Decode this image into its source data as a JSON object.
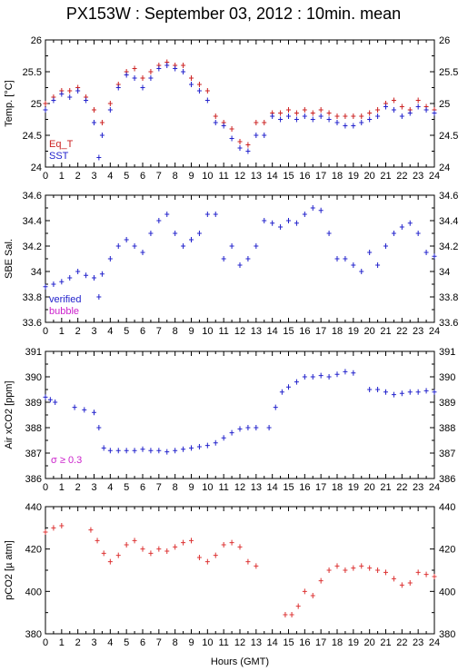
{
  "title": "PX153W : September 03, 2012 : 10min. mean",
  "chart_data": [
    {
      "type": "scatter",
      "ylabel": "Temp. [°C]",
      "ylim": [
        24,
        26
      ],
      "yticks": [
        "24",
        "24.5",
        "25",
        "25.5",
        "26"
      ],
      "xlim": [
        0,
        24
      ],
      "xticks": [
        "0",
        "1",
        "2",
        "3",
        "4",
        "5",
        "6",
        "7",
        "8",
        "9",
        "10",
        "11",
        "12",
        "13",
        "14",
        "15",
        "16",
        "17",
        "18",
        "19",
        "20",
        "21",
        "22",
        "23",
        "24"
      ],
      "legend": [
        {
          "name": "Eq_T",
          "color": "#cc2222"
        },
        {
          "name": "SST",
          "color": "#2222cc"
        }
      ],
      "series": [
        {
          "name": "Eq_T",
          "color": "#cc2222",
          "x": [
            0.0,
            0.5,
            1.0,
            1.5,
            2.0,
            2.5,
            3.0,
            3.5,
            4.0,
            4.5,
            5.0,
            5.5,
            6.0,
            6.5,
            7.0,
            7.5,
            8.0,
            8.5,
            9.0,
            9.5,
            10.0,
            10.5,
            11.0,
            11.5,
            12.0,
            12.5,
            13.0,
            13.5,
            14.0,
            14.5,
            15.0,
            15.5,
            16.0,
            16.5,
            17.0,
            17.5,
            18.0,
            18.5,
            19.0,
            19.5,
            20.0,
            20.5,
            21.0,
            21.5,
            22.0,
            22.5,
            23.0,
            23.5,
            24.0
          ],
          "y": [
            25.0,
            25.1,
            25.2,
            25.2,
            25.25,
            25.1,
            24.9,
            24.7,
            25.0,
            25.3,
            25.5,
            25.55,
            25.4,
            25.5,
            25.6,
            25.65,
            25.6,
            25.6,
            25.4,
            25.3,
            25.2,
            24.8,
            24.7,
            24.6,
            24.4,
            24.35,
            24.7,
            24.7,
            24.85,
            24.85,
            24.9,
            24.85,
            24.9,
            24.85,
            24.9,
            24.85,
            24.8,
            24.8,
            24.8,
            24.8,
            24.85,
            24.9,
            25.0,
            25.05,
            24.95,
            24.9,
            25.05,
            24.95,
            24.9
          ]
        },
        {
          "name": "SST",
          "color": "#2222cc",
          "x": [
            0.0,
            0.5,
            1.0,
            1.5,
            2.0,
            2.5,
            3.0,
            3.3,
            3.5,
            4.0,
            4.5,
            5.0,
            5.5,
            6.0,
            6.5,
            7.0,
            7.5,
            8.0,
            8.5,
            9.0,
            9.5,
            10.0,
            10.5,
            11.0,
            11.5,
            12.0,
            12.5,
            13.0,
            13.5,
            14.0,
            14.5,
            15.0,
            15.5,
            16.0,
            16.5,
            17.0,
            17.5,
            18.0,
            18.5,
            19.0,
            19.5,
            20.0,
            20.5,
            21.0,
            21.5,
            22.0,
            22.5,
            23.0,
            23.5,
            24.0
          ],
          "y": [
            24.9,
            25.05,
            25.15,
            25.1,
            25.2,
            25.05,
            24.7,
            24.15,
            24.5,
            24.9,
            25.25,
            25.45,
            25.4,
            25.25,
            25.4,
            25.55,
            25.6,
            25.55,
            25.5,
            25.3,
            25.2,
            25.05,
            24.7,
            24.65,
            24.45,
            24.3,
            24.25,
            24.5,
            24.5,
            24.8,
            24.75,
            24.8,
            24.75,
            24.8,
            24.75,
            24.8,
            24.75,
            24.7,
            24.65,
            24.65,
            24.7,
            24.75,
            24.8,
            24.95,
            24.9,
            24.8,
            24.85,
            24.95,
            24.9,
            24.85
          ]
        }
      ]
    },
    {
      "type": "scatter",
      "ylabel": "SBE Sal.",
      "ylim": [
        33.6,
        34.6
      ],
      "yticks": [
        "33.6",
        "33.8",
        "34",
        "34.2",
        "34.4",
        "34.6"
      ],
      "xlim": [
        0,
        24
      ],
      "legend": [
        {
          "name": "verified",
          "color": "#2222cc"
        },
        {
          "name": "bubble",
          "color": "#cc22cc"
        }
      ],
      "series": [
        {
          "name": "verified",
          "color": "#2222cc",
          "x": [
            0.0,
            0.5,
            1.0,
            1.5,
            2.0,
            2.5,
            3.0,
            3.3,
            3.5,
            4.0,
            4.5,
            5.0,
            5.5,
            6.0,
            6.5,
            7.0,
            7.5,
            8.0,
            8.5,
            9.0,
            9.5,
            10.0,
            10.5,
            11.0,
            11.5,
            12.0,
            12.5,
            13.0,
            13.5,
            14.0,
            14.5,
            15.0,
            15.5,
            16.0,
            16.5,
            17.0,
            17.5,
            18.0,
            18.5,
            19.0,
            19.5,
            20.0,
            20.5,
            21.0,
            21.5,
            22.0,
            22.5,
            23.0,
            23.5,
            24.0
          ],
          "y": [
            33.88,
            33.9,
            33.92,
            33.95,
            34.0,
            33.97,
            33.95,
            33.8,
            33.98,
            34.1,
            34.2,
            34.25,
            34.2,
            34.15,
            34.3,
            34.4,
            34.45,
            34.3,
            34.2,
            34.25,
            34.3,
            34.45,
            34.45,
            34.1,
            34.2,
            34.05,
            34.1,
            34.2,
            34.4,
            34.38,
            34.35,
            34.4,
            34.38,
            34.45,
            34.5,
            34.48,
            34.3,
            34.1,
            34.1,
            34.05,
            34.0,
            34.15,
            34.05,
            34.2,
            34.3,
            34.35,
            34.38,
            34.3,
            34.15,
            34.12
          ]
        }
      ]
    },
    {
      "type": "scatter",
      "ylabel": "Air xCO2 [ppm]",
      "ylim": [
        386,
        391
      ],
      "yticks": [
        "386",
        "387",
        "388",
        "389",
        "390",
        "391"
      ],
      "xlim": [
        0,
        24
      ],
      "annotation": "σ ≥ 0.3",
      "series": [
        {
          "name": "Air xCO2",
          "color": "#2222cc",
          "x": [
            0.0,
            0.3,
            0.6,
            1.8,
            2.4,
            3.0,
            3.3,
            3.6,
            4.0,
            4.5,
            5.0,
            5.5,
            6.0,
            6.5,
            7.0,
            7.5,
            8.0,
            8.5,
            9.0,
            9.5,
            10.0,
            10.5,
            11.0,
            11.5,
            12.0,
            12.5,
            13.0,
            13.8,
            14.2,
            14.6,
            15.0,
            15.5,
            16.0,
            16.5,
            17.0,
            17.5,
            18.0,
            18.5,
            19.0,
            20.0,
            20.5,
            21.0,
            21.5,
            22.0,
            22.5,
            23.0,
            23.5,
            24.0
          ],
          "y": [
            389.2,
            389.1,
            389.0,
            388.8,
            388.7,
            388.6,
            388.0,
            387.2,
            387.1,
            387.1,
            387.1,
            387.1,
            387.15,
            387.1,
            387.1,
            387.05,
            387.1,
            387.15,
            387.2,
            387.25,
            387.3,
            387.4,
            387.6,
            387.8,
            387.95,
            388.0,
            388.0,
            388.0,
            388.8,
            389.4,
            389.6,
            389.8,
            390.0,
            390.0,
            390.05,
            390.0,
            390.1,
            390.2,
            390.15,
            389.5,
            389.5,
            389.4,
            389.3,
            389.35,
            389.4,
            389.4,
            389.45,
            389.4
          ]
        }
      ]
    },
    {
      "type": "scatter",
      "ylabel": "pCO2 [µ atm]",
      "ylim": [
        380,
        440
      ],
      "yticks": [
        "380",
        "400",
        "420",
        "440"
      ],
      "xlim": [
        0,
        24
      ],
      "xlabel": "Hours (GMT)",
      "series": [
        {
          "name": "pCO2",
          "color": "#dd3333",
          "x": [
            0.0,
            0.5,
            1.0,
            2.8,
            3.2,
            3.6,
            4.0,
            4.5,
            5.0,
            5.5,
            6.0,
            6.5,
            7.0,
            7.5,
            8.0,
            8.5,
            9.0,
            9.5,
            10.0,
            10.5,
            11.0,
            11.5,
            12.0,
            12.5,
            13.0,
            14.8,
            15.2,
            15.6,
            16.0,
            16.5,
            17.0,
            17.5,
            18.0,
            18.5,
            19.0,
            19.5,
            20.0,
            20.5,
            21.0,
            21.5,
            22.0,
            22.5,
            23.0,
            23.5,
            24.0
          ],
          "y": [
            428,
            430,
            431,
            429,
            424,
            418,
            414,
            417,
            422,
            424,
            420,
            418,
            420,
            419,
            421,
            423,
            424,
            416,
            414,
            417,
            422,
            423,
            421,
            414,
            412,
            389,
            389,
            393,
            400,
            398,
            405,
            410,
            412,
            410,
            411,
            412,
            411,
            410,
            409,
            406,
            403,
            404,
            409,
            408,
            407
          ]
        }
      ]
    }
  ]
}
